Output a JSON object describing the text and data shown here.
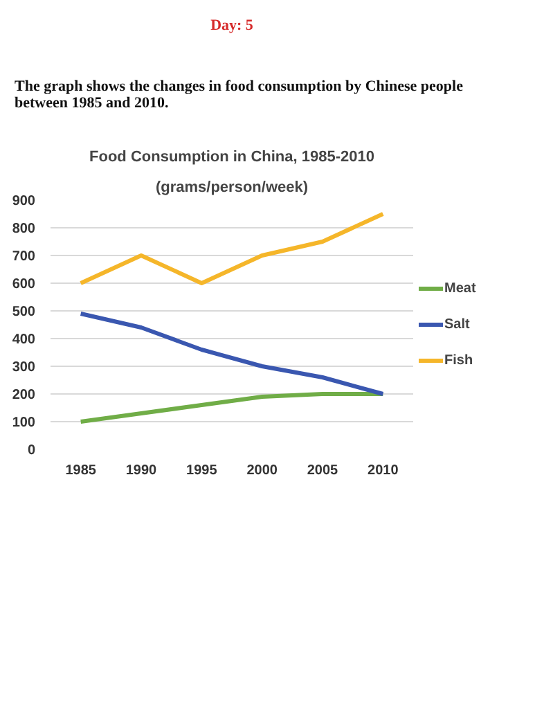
{
  "chart_data": {
    "type": "line",
    "title": "Food Consumption in China, 1985-2010",
    "subtitle": "(grams/person/week)",
    "annotations": [
      "Day: 5",
      "The graph shows the changes in food consumption by Chinese people between 1985 and 2010."
    ],
    "categories": [
      "1985",
      "1990",
      "1995",
      "2000",
      "2005",
      "2010"
    ],
    "series": [
      {
        "name": "Meat",
        "color": "#70ad47",
        "values": [
          100,
          130,
          160,
          190,
          200,
          200
        ]
      },
      {
        "name": "Salt",
        "color": "#3a57b0",
        "values": [
          490,
          440,
          360,
          300,
          260,
          200
        ]
      },
      {
        "name": "Fish",
        "color": "#f5b62a",
        "values": [
          600,
          700,
          600,
          700,
          750,
          850
        ]
      }
    ],
    "ylim": [
      0,
      900
    ],
    "yticks": [
      0,
      100,
      200,
      300,
      400,
      500,
      600,
      700,
      800,
      900
    ],
    "grid": "y",
    "legend": "right",
    "marker": "none",
    "line_style": "solid"
  }
}
